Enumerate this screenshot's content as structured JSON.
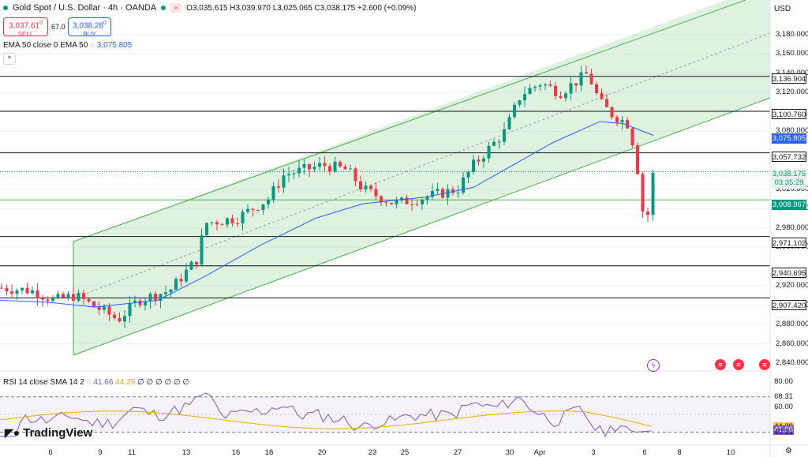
{
  "header": {
    "title": "Gold Spot / U.S. Dollar · 4h · OANDA",
    "ohlc": "O3,035.615 H3,039.970 L3,025.065 C3,038.175 +2.600 (+0.09%)",
    "sell_price": "3,037.61",
    "sell_sup": "0",
    "sell_label": "SELL",
    "spread": "67.0",
    "buy_price": "3,038.28",
    "buy_sup": "0",
    "buy_label": "BUY"
  },
  "ema": {
    "label": "EMA 50 close 0 EMA 50",
    "value": "3,075.805"
  },
  "rsi": {
    "label": "RSI 14 close SMA 14 2",
    "value1": "41.66",
    "value2": "44.29",
    "extra": "∅ ∅ ∅ ∅ ∅ ∅"
  },
  "currency": "USD",
  "branding": "TradingView",
  "colors": {
    "up": "#089981",
    "down": "#f23645",
    "ema": "#2962ff",
    "rsi": "#7e57c2",
    "rsi_ma": "#e0b000",
    "channel": "#4caf50"
  },
  "price_axis": [
    "3,180.000",
    "3,160.000",
    "3,140.000",
    "3,120.000",
    "3,080.000",
    "3,020.000",
    "3,000.000",
    "2,980.000",
    "2,960.000",
    "2,920.000",
    "2,900.000",
    "2,880.000",
    "2,860.000",
    "2,840.000"
  ],
  "level_labels": [
    "3,136.904",
    "3,100.760",
    "3,075.805",
    "3,057.732",
    "3,038.175",
    "03:35:29",
    "3,008.967",
    "2,971.102",
    "2,940.695",
    "2,907.420"
  ],
  "rsi_axis": [
    "80.00",
    "68.31",
    "60.00",
    "44.29",
    "41.66",
    "40.31"
  ],
  "time_axis": [
    "6",
    "9",
    "11",
    "13",
    "16",
    "18",
    "20",
    "23",
    "25",
    "27",
    "30",
    "Apr",
    "3",
    "6",
    "8",
    "10"
  ],
  "chart_data": {
    "type": "candlestick",
    "timeframe": "4h",
    "y_range": [
      2840,
      3190
    ],
    "current_price": 3038.175,
    "horizontal_levels": [
      3136.904,
      3100.76,
      3057.732,
      3008.967,
      2971.102,
      2940.695,
      2907.42
    ],
    "ema50_last": 3075.805,
    "rsi_last": 41.66,
    "rsi_sma_last": 44.29,
    "rsi_range": [
      35,
      85
    ],
    "rsi_bands": [
      40.31,
      68.31
    ]
  }
}
